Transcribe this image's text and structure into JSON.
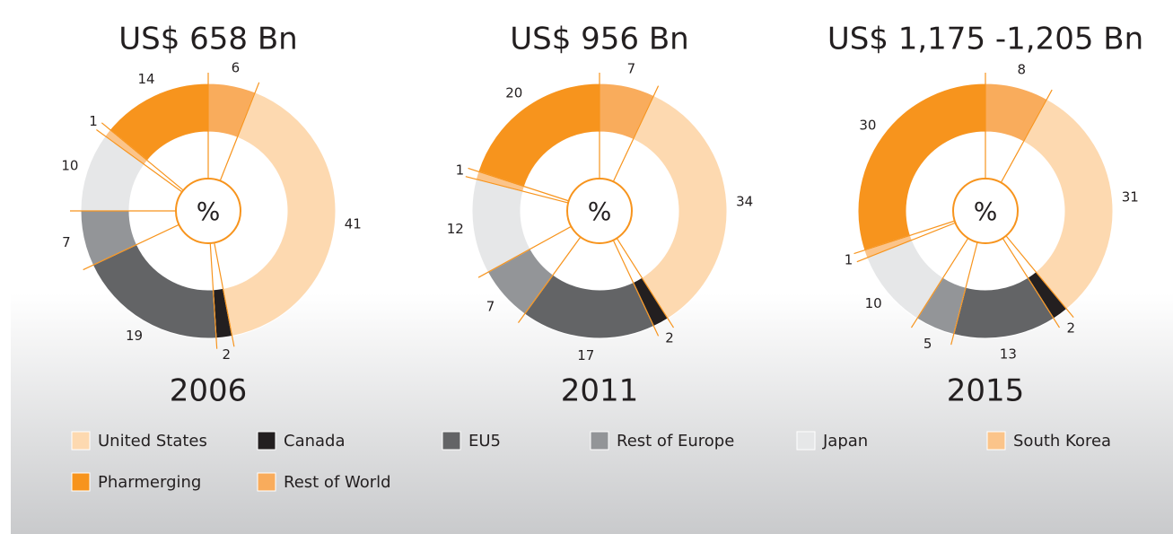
{
  "chart_data": {
    "type": "donut",
    "categories": [
      "United States",
      "Canada",
      "EU5",
      "Rest of Europe",
      "Japan",
      "South Korea",
      "Pharmerging",
      "Rest of World"
    ],
    "colors": [
      "#fdd9b0",
      "#231f20",
      "#636466",
      "#939598",
      "#e6e7e8",
      "#fbc48a",
      "#f7941d",
      "#f9ac5c"
    ],
    "center_label": "%",
    "series": [
      {
        "name": "2006",
        "title": "US$ 658 Bn",
        "values": [
          41,
          2,
          19,
          7,
          10,
          1,
          14,
          6
        ]
      },
      {
        "name": "2011",
        "title": "US$ 956 Bn",
        "values": [
          34,
          2,
          17,
          7,
          12,
          1,
          20,
          7
        ]
      },
      {
        "name": "2015",
        "title": "US$ 1,175 -1,205 Bn",
        "values": [
          31,
          2,
          13,
          5,
          10,
          1,
          30,
          8
        ]
      }
    ]
  }
}
